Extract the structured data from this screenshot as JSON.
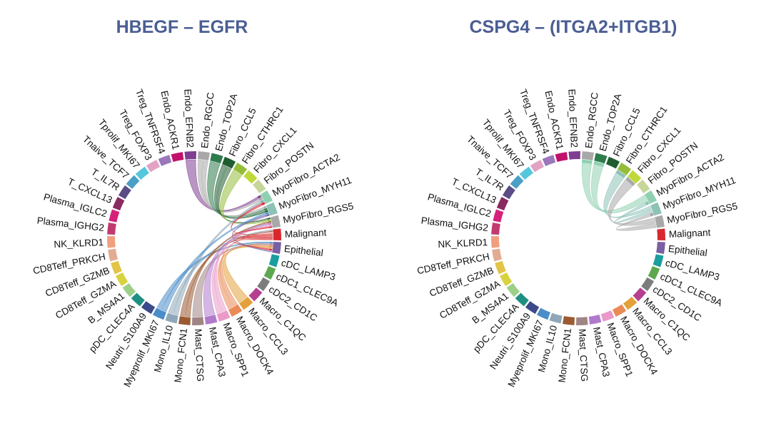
{
  "sectors": [
    {
      "label": "Malignant",
      "color": "#d8282f"
    },
    {
      "label": "Epithelial",
      "color": "#7a5fa3"
    },
    {
      "label": "cDC_LAMP3",
      "color": "#1b9e9e"
    },
    {
      "label": "cDC1_CLEC9A",
      "color": "#5da84e"
    },
    {
      "label": "cDC2_CD1C",
      "color": "#7c7c7c"
    },
    {
      "label": "Macro_C1QC",
      "color": "#b5408f"
    },
    {
      "label": "Macro_CCL3",
      "color": "#e4a13a"
    },
    {
      "label": "Macro_DOCK4",
      "color": "#e98a57"
    },
    {
      "label": "Macro_SPP1",
      "color": "#e99ac8"
    },
    {
      "label": "Mast_CPA3",
      "color": "#b07acc"
    },
    {
      "label": "Mast_CTSG",
      "color": "#a18484"
    },
    {
      "label": "Mono_FCN1",
      "color": "#9b5a31"
    },
    {
      "label": "Mono_IL10",
      "color": "#8fa7b8"
    },
    {
      "label": "Myeprolif_MKI67",
      "color": "#4b8dc9"
    },
    {
      "label": "Neutri_S100A9",
      "color": "#3c4a8c"
    },
    {
      "label": "pDC_CLEC4A",
      "color": "#1f8f83"
    },
    {
      "label": "B_MS4A1",
      "color": "#9cd089"
    },
    {
      "label": "CD8Teff_GZMA",
      "color": "#d9d23f"
    },
    {
      "label": "CD8Teff_GZMB",
      "color": "#e2c547"
    },
    {
      "label": "CD8Teff_PRKCH",
      "color": "#e2ab93"
    },
    {
      "label": "NK_KLRD1",
      "color": "#f0a07e"
    },
    {
      "label": "Plasma_IGHG2",
      "color": "#c13a6e"
    },
    {
      "label": "Plasma_IGLC2",
      "color": "#d6217b"
    },
    {
      "label": "T_CXCL13",
      "color": "#8a2a63"
    },
    {
      "label": "T_IL7R",
      "color": "#5a4d84"
    },
    {
      "label": "Tnaive_TCF7",
      "color": "#4a9fc6"
    },
    {
      "label": "Tprolif_MKI67",
      "color": "#55c7dc"
    },
    {
      "label": "Treg_FOXP3",
      "color": "#e2a2c5"
    },
    {
      "label": "Treg_TNFRSF4",
      "color": "#9a78bb"
    },
    {
      "label": "Endo_ACKR1",
      "color": "#c1126b"
    },
    {
      "label": "Endo_EFNB2",
      "color": "#7f3e91"
    },
    {
      "label": "Endo_RGCC",
      "color": "#a8a8a8"
    },
    {
      "label": "Endo_TOP2A",
      "color": "#2e7b4c"
    },
    {
      "label": "Fibro_CCL5",
      "color": "#1f5d2f"
    },
    {
      "label": "Fibro_CTHRC1",
      "color": "#96bd3a"
    },
    {
      "label": "Fibro_CXCL1",
      "color": "#bfd93a"
    },
    {
      "label": "Fibro_POSTN",
      "color": "#c6d69b"
    },
    {
      "label": "MyoFibro_ACTA2",
      "color": "#8fd0b0"
    },
    {
      "label": "MyoFibro_MYH11",
      "color": "#8dc2b6"
    },
    {
      "label": "MyoFibro_RGS5",
      "color": "#a8a8a8"
    }
  ],
  "panels": [
    {
      "title": "HBEGF – EGFR",
      "links": [
        {
          "source": "Endo_EFNB2",
          "target": "MyoFibro_ACTA2"
        },
        {
          "source": "Endo_RGCC",
          "target": "MyoFibro_ACTA2"
        },
        {
          "source": "Endo_RGCC",
          "target": "MyoFibro_MYH11"
        },
        {
          "source": "Endo_TOP2A",
          "target": "MyoFibro_MYH11"
        },
        {
          "source": "Fibro_CCL5",
          "target": "MyoFibro_MYH11"
        },
        {
          "source": "Fibro_CCL5",
          "target": "MyoFibro_RGS5"
        },
        {
          "source": "Fibro_CTHRC1",
          "target": "MyoFibro_RGS5"
        },
        {
          "source": "Mono_IL10",
          "target": "MyoFibro_ACTA2"
        },
        {
          "source": "Mono_IL10",
          "target": "Malignant"
        },
        {
          "source": "Myeprolif_MKI67",
          "target": "MyoFibro_MYH11"
        },
        {
          "source": "Myeprolif_MKI67",
          "target": "Epithelial"
        },
        {
          "source": "Mono_FCN1",
          "target": "MyoFibro_RGS5"
        },
        {
          "source": "Mono_FCN1",
          "target": "Malignant"
        },
        {
          "source": "Mast_CTSG",
          "target": "Epithelial"
        },
        {
          "source": "Mast_CPA3",
          "target": "MyoFibro_RGS5"
        },
        {
          "source": "Macro_SPP1",
          "target": "MyoFibro_RGS5"
        },
        {
          "source": "Macro_SPP1",
          "target": "Malignant"
        },
        {
          "source": "Macro_DOCK4",
          "target": "Malignant"
        },
        {
          "source": "Macro_DOCK4",
          "target": "Epithelial"
        },
        {
          "source": "Macro_CCL3",
          "target": "Epithelial"
        },
        {
          "source": "Malignant",
          "target": "MyoFibro_ACTA2"
        },
        {
          "source": "Malignant",
          "target": "MyoFibro_RGS5"
        },
        {
          "source": "Malignant",
          "target": "Malignant"
        },
        {
          "source": "Malignant",
          "target": "Epithelial"
        },
        {
          "source": "Epithelial",
          "target": "MyoFibro_MYH11"
        }
      ]
    },
    {
      "title": "CSPG4 – (ITGA2+ITGB1)",
      "links": [
        {
          "source": "MyoFibro_ACTA2",
          "target": "Endo_RGCC"
        },
        {
          "source": "MyoFibro_ACTA2",
          "target": "Endo_TOP2A"
        },
        {
          "source": "MyoFibro_MYH11",
          "target": "Fibro_CTHRC1"
        },
        {
          "source": "MyoFibro_MYH11",
          "target": "MyoFibro_ACTA2"
        },
        {
          "source": "MyoFibro_RGS5",
          "target": "Fibro_CXCL1"
        },
        {
          "source": "MyoFibro_RGS5",
          "target": "MyoFibro_MYH11"
        }
      ]
    }
  ]
}
